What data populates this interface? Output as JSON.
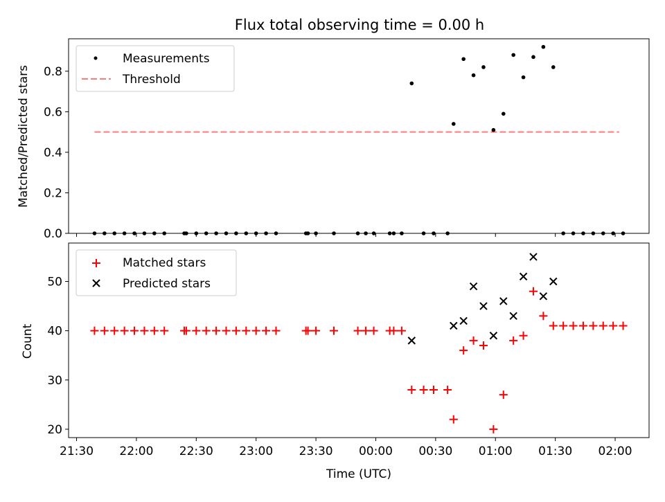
{
  "title": "Flux total observing time = 0.00 h",
  "xlabel": "Time (UTC)",
  "chart_data": [
    {
      "type": "scatter",
      "ylabel": "Matched/Predicted stars",
      "ylim": [
        0,
        0.96
      ],
      "yticks": [
        "0.0",
        "0.2",
        "0.4",
        "0.6",
        "0.8"
      ],
      "legend": {
        "placement": "top-left",
        "entries": [
          "Measurements",
          "Threshold"
        ]
      },
      "colors": {
        "measurements": "#000000",
        "threshold": "#ff7b7b"
      },
      "threshold": {
        "value": 0.5,
        "x_start": "21:39",
        "x_end": "02:02",
        "style": "dashed"
      },
      "series": [
        {
          "name": "Measurements",
          "points": [
            [
              "21:39",
              0
            ],
            [
              "21:44",
              0
            ],
            [
              "21:49",
              0
            ],
            [
              "21:54",
              0
            ],
            [
              "21:59",
              0
            ],
            [
              "22:04",
              0
            ],
            [
              "22:09",
              0
            ],
            [
              "22:14",
              0
            ],
            [
              "22:24",
              0
            ],
            [
              "22:25",
              0
            ],
            [
              "22:30",
              0
            ],
            [
              "22:35",
              0
            ],
            [
              "22:40",
              0
            ],
            [
              "22:45",
              0
            ],
            [
              "22:50",
              0
            ],
            [
              "22:55",
              0
            ],
            [
              "23:00",
              0
            ],
            [
              "23:05",
              0
            ],
            [
              "23:10",
              0
            ],
            [
              "23:25",
              0
            ],
            [
              "23:26",
              0
            ],
            [
              "23:30",
              0
            ],
            [
              "23:39",
              0
            ],
            [
              "23:51",
              0
            ],
            [
              "23:55",
              0
            ],
            [
              "23:59",
              0
            ],
            [
              "00:07",
              0
            ],
            [
              "00:09",
              0
            ],
            [
              "00:13",
              0
            ],
            [
              "00:18",
              0.74
            ],
            [
              "00:24",
              0
            ],
            [
              "00:29",
              0
            ],
            [
              "00:36",
              0
            ],
            [
              "00:39",
              0.54
            ],
            [
              "00:44",
              0.86
            ],
            [
              "00:49",
              0.78
            ],
            [
              "00:54",
              0.82
            ],
            [
              "00:59",
              0.51
            ],
            [
              "01:04",
              0.59
            ],
            [
              "01:09",
              0.88
            ],
            [
              "01:14",
              0.77
            ],
            [
              "01:19",
              0.87
            ],
            [
              "01:24",
              0.92
            ],
            [
              "01:29",
              0.82
            ],
            [
              "01:34",
              0
            ],
            [
              "01:39",
              0
            ],
            [
              "01:44",
              0
            ],
            [
              "01:49",
              0
            ],
            [
              "01:54",
              0
            ],
            [
              "01:59",
              0
            ],
            [
              "02:04",
              0
            ]
          ]
        }
      ]
    },
    {
      "type": "scatter",
      "ylabel": "Count",
      "ylim": [
        18.3,
        57.8
      ],
      "yticks": [
        "20",
        "30",
        "40",
        "50"
      ],
      "legend": {
        "placement": "top-left",
        "entries": [
          "Matched stars",
          "Predicted stars"
        ]
      },
      "colors": {
        "matched": "#ff0000",
        "predicted": "#000000"
      },
      "series": [
        {
          "name": "Matched stars",
          "marker": "plus",
          "points": [
            [
              "21:39",
              40
            ],
            [
              "21:44",
              40
            ],
            [
              "21:49",
              40
            ],
            [
              "21:54",
              40
            ],
            [
              "21:59",
              40
            ],
            [
              "22:04",
              40
            ],
            [
              "22:09",
              40
            ],
            [
              "22:14",
              40
            ],
            [
              "22:24",
              40
            ],
            [
              "22:25",
              40
            ],
            [
              "22:30",
              40
            ],
            [
              "22:35",
              40
            ],
            [
              "22:40",
              40
            ],
            [
              "22:45",
              40
            ],
            [
              "22:50",
              40
            ],
            [
              "22:55",
              40
            ],
            [
              "23:00",
              40
            ],
            [
              "23:05",
              40
            ],
            [
              "23:10",
              40
            ],
            [
              "23:25",
              40
            ],
            [
              "23:26",
              40
            ],
            [
              "23:30",
              40
            ],
            [
              "23:39",
              40
            ],
            [
              "23:51",
              40
            ],
            [
              "23:55",
              40
            ],
            [
              "23:59",
              40
            ],
            [
              "00:07",
              40
            ],
            [
              "00:09",
              40
            ],
            [
              "00:13",
              40
            ],
            [
              "00:18",
              28
            ],
            [
              "00:24",
              28
            ],
            [
              "00:29",
              28
            ],
            [
              "00:36",
              28
            ],
            [
              "00:39",
              22
            ],
            [
              "00:44",
              36
            ],
            [
              "00:49",
              38
            ],
            [
              "00:54",
              37
            ],
            [
              "00:59",
              20
            ],
            [
              "01:04",
              27
            ],
            [
              "01:09",
              38
            ],
            [
              "01:14",
              39
            ],
            [
              "01:19",
              48
            ],
            [
              "01:24",
              43
            ],
            [
              "01:29",
              41
            ],
            [
              "01:34",
              41
            ],
            [
              "01:39",
              41
            ],
            [
              "01:44",
              41
            ],
            [
              "01:49",
              41
            ],
            [
              "01:54",
              41
            ],
            [
              "01:59",
              41
            ],
            [
              "02:04",
              41
            ]
          ]
        },
        {
          "name": "Predicted stars",
          "marker": "x",
          "points": [
            [
              "00:18",
              38
            ],
            [
              "00:39",
              41
            ],
            [
              "00:44",
              42
            ],
            [
              "00:49",
              49
            ],
            [
              "00:54",
              45
            ],
            [
              "00:59",
              39
            ],
            [
              "01:04",
              46
            ],
            [
              "01:09",
              43
            ],
            [
              "01:14",
              51
            ],
            [
              "01:19",
              55
            ],
            [
              "01:24",
              47
            ],
            [
              "01:29",
              50
            ]
          ]
        }
      ]
    }
  ],
  "xticks": [
    "21:30",
    "22:00",
    "22:30",
    "23:00",
    "23:30",
    "00:00",
    "00:30",
    "01:00",
    "01:30",
    "02:00"
  ],
  "xrange": [
    "21:26",
    "02:17"
  ]
}
